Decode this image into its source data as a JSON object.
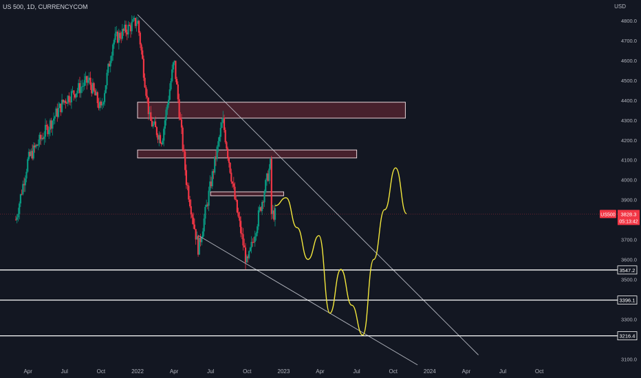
{
  "header": {
    "title": "US 500, 1D, CURRENCYCOM",
    "currency": "USD"
  },
  "symbol": {
    "ticker": "US500",
    "price": "3828.3",
    "countdown": "05:13:42",
    "color": "#f23645"
  },
  "colors": {
    "background": "#131722",
    "up": "#089981",
    "down": "#f23645",
    "trendline": "#d1d4dc",
    "zone_fill": "#5a2532",
    "zone_stroke": "#e8d5da",
    "projection": "#f5e93c",
    "support": "#ffffff"
  },
  "chart_data": {
    "type": "candlestick",
    "y_axis": {
      "min": 3050,
      "max": 4870,
      "ticks": [
        "4800.0",
        "4700.0",
        "4600.0",
        "4500.0",
        "4400.0",
        "4300.0",
        "4200.0",
        "4100.0",
        "4000.0",
        "3900.0",
        "3700.0",
        "3600.0",
        "3500.0",
        "3300.0",
        "3100.0"
      ]
    },
    "x_axis": {
      "labels": [
        "Apr",
        "Jul",
        "Oct",
        "2022",
        "Apr",
        "Jul",
        "Oct",
        "2023",
        "Apr",
        "Jul",
        "Oct",
        "2024",
        "Apr",
        "Jul",
        "Oct"
      ]
    },
    "price_path": [
      [
        "Mar 2021",
        3800
      ],
      [
        "Apr 2021",
        4100
      ],
      [
        "May 2021",
        4200
      ],
      [
        "Jul 2021",
        4400
      ],
      [
        "Sep 2021",
        4500
      ],
      [
        "Oct 2021",
        4350
      ],
      [
        "Nov 2021",
        4700
      ],
      [
        "Jan 2022",
        4800
      ],
      [
        "Feb 2022",
        4300
      ],
      [
        "Mar 2022",
        4200
      ],
      [
        "Apr 2022",
        4600
      ],
      [
        "May 2022",
        4000
      ],
      [
        "Jun 2022",
        3650
      ],
      [
        "Aug 2022",
        4300
      ],
      [
        "Sep 2022",
        3900
      ],
      [
        "Oct 2022",
        3570
      ],
      [
        "Dec 2022",
        4100
      ],
      [
        "Dec 2022",
        3828
      ]
    ],
    "levels": [
      "3547.2",
      "3396.1",
      "3216.4"
    ],
    "zones": [
      {
        "from": 4310,
        "to": 4390
      },
      {
        "from": 4110,
        "to": 4150
      },
      {
        "from": 3920,
        "to": 3940
      }
    ],
    "projection_path": [
      3870,
      3910,
      3760,
      3600,
      3720,
      3330,
      3550,
      3370,
      3220,
      3600,
      3850,
      4060,
      3830
    ]
  }
}
